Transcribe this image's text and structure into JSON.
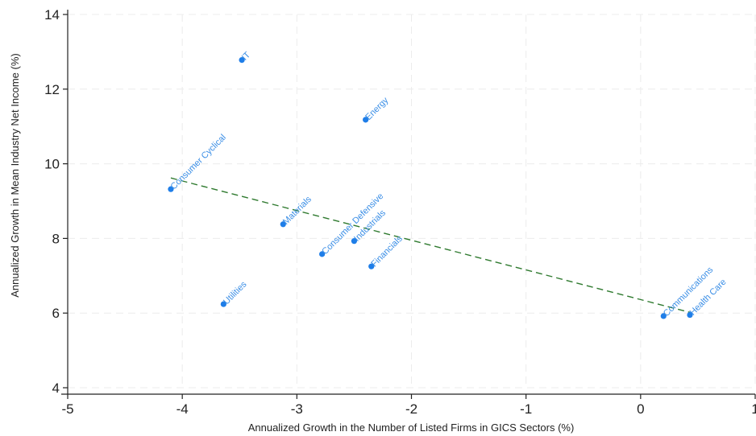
{
  "chart_data": {
    "type": "scatter",
    "xlabel": "Annualized Growth in the Number of Listed Firms in GICS Sectors (%)",
    "ylabel": "Annualized Growth in Mean Industry Net Income (%)",
    "xlim": [
      -5,
      1
    ],
    "ylim": [
      4,
      14
    ],
    "xticks": [
      -5,
      -4,
      -3,
      -2,
      -1,
      0,
      1
    ],
    "yticks": [
      4,
      6,
      8,
      10,
      12,
      14
    ],
    "grid": true,
    "point_color": "#1f7ee8",
    "label_color": "#3a8ee6",
    "fit_color": "#2f7a2f",
    "points": [
      {
        "label": "IT",
        "x": -3.48,
        "y": 12.78
      },
      {
        "label": "Energy",
        "x": -2.4,
        "y": 11.18
      },
      {
        "label": "Consumer Cyclical",
        "x": -4.1,
        "y": 9.32
      },
      {
        "label": "Materials",
        "x": -3.12,
        "y": 8.38
      },
      {
        "label": "Consumer Defensive",
        "x": -2.78,
        "y": 7.58
      },
      {
        "label": "Industrials",
        "x": -2.5,
        "y": 7.93
      },
      {
        "label": "Financials",
        "x": -2.35,
        "y": 7.25
      },
      {
        "label": "Utilities",
        "x": -3.64,
        "y": 6.24
      },
      {
        "label": "Communications",
        "x": 0.2,
        "y": 5.92
      },
      {
        "label": "Health Care",
        "x": 0.43,
        "y": 5.95
      }
    ],
    "fit_line": {
      "x": [
        -4.1,
        0.43
      ],
      "y": [
        9.62,
        6.02
      ],
      "style": "dashed"
    }
  }
}
